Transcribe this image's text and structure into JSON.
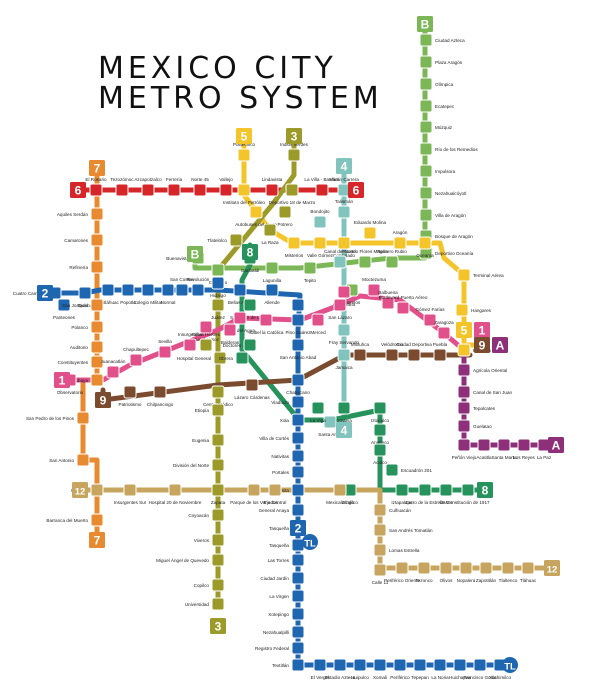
{
  "title_line1": "MEXICO CITY",
  "title_line2": "METRO SYSTEM",
  "colors": {
    "L1": "#e2508b",
    "L2": "#1f66b1",
    "L3": "#9c9b29",
    "L4": "#81c3bd",
    "L5": "#f4c52a",
    "L6": "#d7262a",
    "L7": "#e88a2f",
    "L8": "#26935c",
    "L9": "#7a4b2e",
    "LA": "#8d2f79",
    "LB": "#7bb657",
    "L12": "#c7a55f",
    "LTL": "#1f66b1"
  },
  "line_badges": [
    {
      "id": "b7a",
      "label": "7",
      "line": "L7"
    },
    {
      "id": "b6a",
      "label": "6",
      "line": "L6"
    },
    {
      "id": "b6b",
      "label": "6",
      "line": "L6"
    },
    {
      "id": "b5a",
      "label": "5",
      "line": "L5"
    },
    {
      "id": "b3a",
      "label": "3",
      "line": "L3"
    },
    {
      "id": "b4a",
      "label": "4",
      "line": "L4"
    },
    {
      "id": "b4b",
      "label": "4",
      "line": "L4"
    },
    {
      "id": "bBa",
      "label": "B",
      "line": "LB"
    },
    {
      "id": "bBb",
      "label": "B",
      "line": "LB"
    },
    {
      "id": "b8a",
      "label": "8",
      "line": "L8"
    },
    {
      "id": "b8b",
      "label": "8",
      "line": "L8"
    },
    {
      "id": "b2a",
      "label": "2",
      "line": "L2"
    },
    {
      "id": "b2b",
      "label": "2",
      "line": "L2"
    },
    {
      "id": "bTLa",
      "label": "TL",
      "line": "LTL"
    },
    {
      "id": "bTLb",
      "label": "TL",
      "line": "LTL"
    },
    {
      "id": "b1a",
      "label": "1",
      "line": "L1"
    },
    {
      "id": "b1b",
      "label": "1",
      "line": "L1"
    },
    {
      "id": "b9a",
      "label": "9",
      "line": "L9"
    },
    {
      "id": "b9b",
      "label": "9",
      "line": "L9"
    },
    {
      "id": "b5b",
      "label": "5",
      "line": "L5"
    },
    {
      "id": "bAa",
      "label": "A",
      "line": "LA"
    },
    {
      "id": "bAb",
      "label": "A",
      "line": "LA"
    },
    {
      "id": "b12a",
      "label": "12",
      "line": "L12"
    },
    {
      "id": "b12b",
      "label": "12",
      "line": "L12"
    },
    {
      "id": "b7b",
      "label": "7",
      "line": "L7"
    },
    {
      "id": "b3b",
      "label": "3",
      "line": "L3"
    }
  ],
  "stations": [
    {
      "id": "s1",
      "name": "Ciudad Azteca",
      "line": "LB"
    },
    {
      "id": "s2",
      "name": "Plaza Aragón",
      "line": "LB"
    },
    {
      "id": "s3",
      "name": "Olímpica",
      "line": "LB"
    },
    {
      "id": "s4",
      "name": "Ecatepec",
      "line": "LB"
    },
    {
      "id": "s5",
      "name": "Múzquiz",
      "line": "LB"
    },
    {
      "id": "s6",
      "name": "Río de los Remedios",
      "line": "LB"
    },
    {
      "id": "s7",
      "name": "Impulsora",
      "line": "LB"
    },
    {
      "id": "s8",
      "name": "Nezahualcóyotl",
      "line": "LB"
    },
    {
      "id": "s9",
      "name": "Villa de Aragón",
      "line": "LB"
    },
    {
      "id": "s10",
      "name": "Bosque de Aragón",
      "line": "LB"
    },
    {
      "id": "s11",
      "name": "Deportivo Oceanía",
      "line": "LB"
    },
    {
      "id": "s12",
      "name": "El Rosario",
      "line": "L6"
    },
    {
      "id": "s13",
      "name": "Tezozómoc",
      "line": "L6"
    },
    {
      "id": "s14",
      "name": "Azcapotzalco",
      "line": "L6"
    },
    {
      "id": "s15",
      "name": "Ferrería",
      "line": "L6"
    },
    {
      "id": "s16",
      "name": "Norte 45",
      "line": "L6"
    },
    {
      "id": "s17",
      "name": "Vallejo",
      "line": "L6"
    },
    {
      "id": "s18",
      "name": "Politécnico",
      "line": "L5"
    },
    {
      "id": "s19",
      "name": "Indios Verdes",
      "line": "L3"
    },
    {
      "id": "s20",
      "name": "Instituto del Petróleo",
      "line": "L5"
    },
    {
      "id": "s21",
      "name": "Lindavista",
      "line": "L6"
    },
    {
      "id": "s22",
      "name": "Deportivo 18 de Marzo",
      "line": "L3"
    },
    {
      "id": "s23",
      "name": "La Villa - Basílica",
      "line": "L6"
    },
    {
      "id": "s24",
      "name": "Martín Carrera",
      "line": "L4"
    },
    {
      "id": "s25",
      "name": "Aquiles Serdán",
      "line": "L7"
    },
    {
      "id": "s26",
      "name": "Autobuses del Norte",
      "line": "L5"
    },
    {
      "id": "s27",
      "name": "Potrero",
      "line": "L3"
    },
    {
      "id": "s28",
      "name": "Talismán",
      "line": "L4"
    },
    {
      "id": "s29",
      "name": "Camarones",
      "line": "L7"
    },
    {
      "id": "s30",
      "name": "Tlatelolco",
      "line": "L3"
    },
    {
      "id": "s31",
      "name": "La Raza",
      "line": "L3"
    },
    {
      "id": "s32",
      "name": "Misterios",
      "line": "L5"
    },
    {
      "id": "s33",
      "name": "Valle Gómez",
      "line": "L5"
    },
    {
      "id": "s34",
      "name": "Bondojito",
      "line": "L4"
    },
    {
      "id": "s35",
      "name": "Eduardo Molina",
      "line": "L5"
    },
    {
      "id": "s36",
      "name": "Aragón",
      "line": "L5"
    },
    {
      "id": "s37",
      "name": "Oceanía",
      "line": "L5"
    },
    {
      "id": "s38",
      "name": "Consulado",
      "line": "L5"
    },
    {
      "id": "s39",
      "name": "Refinería",
      "line": "L7"
    },
    {
      "id": "s40",
      "name": "Buenavista",
      "line": "LB"
    },
    {
      "id": "s41",
      "name": "Guerrero",
      "line": "LB"
    },
    {
      "id": "s42",
      "name": "Garibaldi",
      "line": "L8"
    },
    {
      "id": "s43",
      "name": "Lagunilla",
      "line": "LB"
    },
    {
      "id": "s44",
      "name": "Tepito",
      "line": "LB"
    },
    {
      "id": "s45",
      "name": "Canal del Norte",
      "line": "L4"
    },
    {
      "id": "s46",
      "name": "Ricardo Flores Magón",
      "line": "LB"
    },
    {
      "id": "s47",
      "name": "Romero Rubio",
      "line": "LB"
    },
    {
      "id": "s48",
      "name": "Terminal Aérea",
      "line": "L5"
    },
    {
      "id": "s49",
      "name": "Cuatro Caminos",
      "line": "L2"
    },
    {
      "id": "s50",
      "name": "Tacuba",
      "line": "L2"
    },
    {
      "id": "s51",
      "name": "Cuitláhuac",
      "line": "L2"
    },
    {
      "id": "s52",
      "name": "Popotla",
      "line": "L2"
    },
    {
      "id": "s53",
      "name": "Colegio Militar",
      "line": "L2"
    },
    {
      "id": "s54",
      "name": "Normal",
      "line": "L2"
    },
    {
      "id": "s55",
      "name": "San Cosme",
      "line": "L2"
    },
    {
      "id": "s56",
      "name": "Revolución",
      "line": "L2"
    },
    {
      "id": "s57",
      "name": "Hidalgo",
      "line": "L2"
    },
    {
      "id": "s58",
      "name": "Bellas Artes",
      "line": "L2"
    },
    {
      "id": "s59",
      "name": "Allende",
      "line": "L2"
    },
    {
      "id": "s60",
      "name": "Morelos",
      "line": "LB"
    },
    {
      "id": "s61",
      "name": "Panteones",
      "line": "L2"
    },
    {
      "id": "s62",
      "name": "San Joaquín",
      "line": "L7"
    },
    {
      "id": "s63",
      "name": "Juárez",
      "line": "L3"
    },
    {
      "id": "s64",
      "name": "San Juan de Letrán",
      "line": "L8"
    },
    {
      "id": "s65",
      "name": "Zócalo",
      "line": "L2"
    },
    {
      "id": "s66",
      "name": "Candelaria",
      "line": "L1"
    },
    {
      "id": "s67",
      "name": "Moctezuma",
      "line": "L1"
    },
    {
      "id": "s68",
      "name": "Hangares",
      "line": "L5"
    },
    {
      "id": "s69",
      "name": "Balbuena",
      "line": "L1"
    },
    {
      "id": "s70",
      "name": "Boulevard Puerto Aéreo",
      "line": "L1"
    },
    {
      "id": "s71",
      "name": "Polanco",
      "line": "L7"
    },
    {
      "id": "s72",
      "name": "Salto del Agua",
      "line": "L1"
    },
    {
      "id": "s73",
      "name": "Pino Suárez",
      "line": "L2"
    },
    {
      "id": "s74",
      "name": "Merced",
      "line": "L1"
    },
    {
      "id": "s75",
      "name": "San Lázaro",
      "line": "L1"
    },
    {
      "id": "s76",
      "name": "Gómez Farías",
      "line": "L1"
    },
    {
      "id": "s77",
      "name": "Cuauhtémoc",
      "line": "L1"
    },
    {
      "id": "s78",
      "name": "Balderas",
      "line": "L1"
    },
    {
      "id": "s79",
      "name": "Isabel la Católica",
      "line": "L1"
    },
    {
      "id": "s80",
      "name": "Fray Servando",
      "line": "L4"
    },
    {
      "id": "s81",
      "name": "Zaragoza",
      "line": "L1"
    },
    {
      "id": "s82",
      "name": "Auditorio",
      "line": "L7"
    },
    {
      "id": "s83",
      "name": "Insurgentes",
      "line": "L1"
    },
    {
      "id": "s84",
      "name": "Niños Héroes",
      "line": "L3"
    },
    {
      "id": "s85",
      "name": "Sevilla",
      "line": "L1"
    },
    {
      "id": "s86",
      "name": "Doctores",
      "line": "L8"
    },
    {
      "id": "s87",
      "name": "San Antonio Abad",
      "line": "L2"
    },
    {
      "id": "s88",
      "name": "Jamaica",
      "line": "L4"
    },
    {
      "id": "s89",
      "name": "Pantitlán",
      "line": "L5"
    },
    {
      "id": "s90",
      "name": "Constituyentes",
      "line": "L7"
    },
    {
      "id": "s91",
      "name": "Chapultepec",
      "line": "L1"
    },
    {
      "id": "s92",
      "name": "Hospital General",
      "line": "L3"
    },
    {
      "id": "s93",
      "name": "Obrera",
      "line": "L8"
    },
    {
      "id": "s94",
      "name": "Mixiuhca",
      "line": "L9"
    },
    {
      "id": "s95",
      "name": "Velódromo",
      "line": "L9"
    },
    {
      "id": "s96",
      "name": "Ciudad Deportiva",
      "line": "L9"
    },
    {
      "id": "s97",
      "name": "Puebla",
      "line": "L9"
    },
    {
      "id": "s98",
      "name": "Tacubaya",
      "line": "L7"
    },
    {
      "id": "s99",
      "name": "Juanacatlán",
      "line": "L1"
    },
    {
      "id": "s100",
      "name": "Chabacano",
      "line": "L2"
    },
    {
      "id": "s101",
      "name": "Agrícola Oriental",
      "line": "LA"
    },
    {
      "id": "s102",
      "name": "Observatorio",
      "line": "L1"
    },
    {
      "id": "s103",
      "name": "Patriotismo",
      "line": "L9"
    },
    {
      "id": "s104",
      "name": "Chilpancingo",
      "line": "L9"
    },
    {
      "id": "s105",
      "name": "Centro Médico",
      "line": "L3"
    },
    {
      "id": "s106",
      "name": "Lázaro Cárdenas",
      "line": "L9"
    },
    {
      "id": "s107",
      "name": "Canal de San Juan",
      "line": "LA"
    },
    {
      "id": "s108",
      "name": "Viaducto",
      "line": "L2"
    },
    {
      "id": "s109",
      "name": "Santa Anita",
      "line": "L4"
    },
    {
      "id": "s110",
      "name": "La Viga",
      "line": "L8"
    },
    {
      "id": "s111",
      "name": "Coyuya",
      "line": "L8"
    },
    {
      "id": "s112",
      "name": "Iztacalco",
      "line": "L8"
    },
    {
      "id": "s113",
      "name": "Tepalcates",
      "line": "LA"
    },
    {
      "id": "s114",
      "name": "San Pedro de los Pinos",
      "line": "L7"
    },
    {
      "id": "s115",
      "name": "Etiopía",
      "line": "L3"
    },
    {
      "id": "s116",
      "name": "Xola",
      "line": "L2"
    },
    {
      "id": "s117",
      "name": "Apatlaco",
      "line": "L8"
    },
    {
      "id": "s118",
      "name": "Guelatao",
      "line": "LA"
    },
    {
      "id": "s119",
      "name": "Eugenia",
      "line": "L3"
    },
    {
      "id": "s120",
      "name": "Villa de Cortés",
      "line": "L2"
    },
    {
      "id": "s121",
      "name": "Aculco",
      "line": "L8"
    },
    {
      "id": "s122",
      "name": "Peñón Viejo",
      "line": "LA"
    },
    {
      "id": "s123",
      "name": "Acatitla",
      "line": "LA"
    },
    {
      "id": "s124",
      "name": "Santa Marta",
      "line": "LA"
    },
    {
      "id": "s125",
      "name": "Los Reyes",
      "line": "LA"
    },
    {
      "id": "s126",
      "name": "La Paz",
      "line": "LA"
    },
    {
      "id": "s127",
      "name": "San Antonio",
      "line": "L7"
    },
    {
      "id": "s128",
      "name": "Nativitas",
      "line": "L2"
    },
    {
      "id": "s129",
      "name": "División del Norte",
      "line": "L3"
    },
    {
      "id": "s130",
      "name": "Portales",
      "line": "L2"
    },
    {
      "id": "s131",
      "name": "Escuadrón 201",
      "line": "L8"
    },
    {
      "id": "s132",
      "name": "Mixcoac",
      "line": "L12"
    },
    {
      "id": "s133",
      "name": "Ermita",
      "line": "L2"
    },
    {
      "id": "s134",
      "name": "Atlalilco",
      "line": "L8"
    },
    {
      "id": "s135",
      "name": "Insurgentes Sur",
      "line": "L12"
    },
    {
      "id": "s136",
      "name": "Hospital 20 de Noviembre",
      "line": "L12"
    },
    {
      "id": "s137",
      "name": "Zapata",
      "line": "L3"
    },
    {
      "id": "s138",
      "name": "Parque de los Venados",
      "line": "L12"
    },
    {
      "id": "s139",
      "name": "Eje Central",
      "line": "L12"
    },
    {
      "id": "s140",
      "name": "Mexicaltzingo",
      "line": "L12"
    },
    {
      "id": "s141",
      "name": "Iztapalapa",
      "line": "L8"
    },
    {
      "id": "s142",
      "name": "Cerro de la Estrella",
      "line": "L8"
    },
    {
      "id": "s143",
      "name": "UAM-I",
      "line": "L8"
    },
    {
      "id": "s144",
      "name": "Constitución de 1917",
      "line": "L8"
    },
    {
      "id": "s145",
      "name": "General Anaya",
      "line": "L2"
    },
    {
      "id": "s146",
      "name": "Coyoacán",
      "line": "L3"
    },
    {
      "id": "s147",
      "name": "Culhuacán",
      "line": "L12"
    },
    {
      "id": "s148",
      "name": "Barranca del Muerto",
      "line": "L7"
    },
    {
      "id": "s149",
      "name": "Tasqueña",
      "line": "L2"
    },
    {
      "id": "s150",
      "name": "San Andrés Tomatlán",
      "line": "L12"
    },
    {
      "id": "s151",
      "name": "Viveros",
      "line": "L3"
    },
    {
      "id": "s152",
      "name": "Lomas Estrella",
      "line": "L12"
    },
    {
      "id": "s153",
      "name": "Tasqueña",
      "line": "LTL"
    },
    {
      "id": "s154",
      "name": "Miguel Ángel de Quevedo",
      "line": "L3"
    },
    {
      "id": "s155",
      "name": "Las Torres",
      "line": "LTL"
    },
    {
      "id": "s156",
      "name": "Calle 11",
      "line": "L12"
    },
    {
      "id": "s157",
      "name": "Periférico Oriente",
      "line": "L12"
    },
    {
      "id": "s158",
      "name": "Tezonco",
      "line": "L12"
    },
    {
      "id": "s159",
      "name": "Olivos",
      "line": "L12"
    },
    {
      "id": "s160",
      "name": "Nopalera",
      "line": "L12"
    },
    {
      "id": "s161",
      "name": "Zapotitlán",
      "line": "L12"
    },
    {
      "id": "s162",
      "name": "Tlaltenco",
      "line": "L12"
    },
    {
      "id": "s163",
      "name": "Tláhuac",
      "line": "L12"
    },
    {
      "id": "s164",
      "name": "Copilco",
      "line": "L3"
    },
    {
      "id": "s165",
      "name": "Ciudad Jardín",
      "line": "LTL"
    },
    {
      "id": "s166",
      "name": "La Virgen",
      "line": "LTL"
    },
    {
      "id": "s167",
      "name": "Universidad",
      "line": "L3"
    },
    {
      "id": "s168",
      "name": "Xotepingo",
      "line": "LTL"
    },
    {
      "id": "s169",
      "name": "Nezahualpilli",
      "line": "LTL"
    },
    {
      "id": "s170",
      "name": "Registro Federal",
      "line": "LTL"
    },
    {
      "id": "s171",
      "name": "Textitlán",
      "line": "LTL"
    },
    {
      "id": "s172",
      "name": "El Vergel",
      "line": "LTL"
    },
    {
      "id": "s173",
      "name": "Estadio Azteca",
      "line": "LTL"
    },
    {
      "id": "s174",
      "name": "Huipulco",
      "line": "LTL"
    },
    {
      "id": "s175",
      "name": "Xomali",
      "line": "LTL"
    },
    {
      "id": "s176",
      "name": "Periférico",
      "line": "LTL"
    },
    {
      "id": "s177",
      "name": "Tepepan",
      "line": "LTL"
    },
    {
      "id": "s178",
      "name": "La Noria",
      "line": "LTL"
    },
    {
      "id": "s179",
      "name": "Huichapan",
      "line": "LTL"
    },
    {
      "id": "s180",
      "name": "Francisco Goitia",
      "line": "LTL"
    },
    {
      "id": "s181",
      "name": "Xochimilco",
      "line": "LTL"
    }
  ]
}
